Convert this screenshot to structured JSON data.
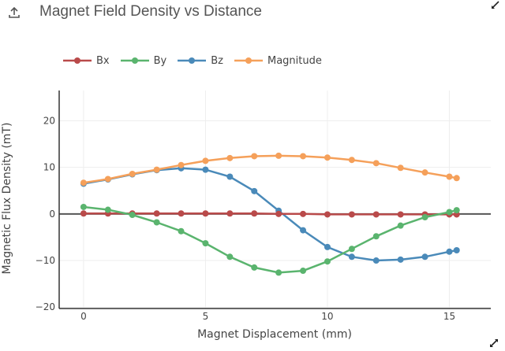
{
  "header": {
    "title": "Magnet Field Density vs Distance",
    "upload_icon": "upload-icon",
    "expand_icon": "expand-diagonal-icon"
  },
  "chart_data": {
    "type": "line",
    "title": "Magnet Field Density vs Distance",
    "xlabel": "Magnet Displacement (mm)",
    "ylabel": "Magnetic Flux Density (mT)",
    "xlim": [
      -1,
      16.7
    ],
    "ylim": [
      -20.3,
      26.5
    ],
    "xticks": [
      0,
      5,
      10,
      15
    ],
    "yticks": [
      -20,
      -10,
      0,
      10,
      20
    ],
    "xtick_labels": [
      "0",
      "5",
      "10",
      "15"
    ],
    "ytick_labels": [
      "−20",
      "−10",
      "0",
      "10",
      "20"
    ],
    "grid": true,
    "legend_position": "top-left, horizontal",
    "x": [
      0,
      1,
      2,
      3,
      4,
      5,
      6,
      7,
      8,
      9,
      10,
      11,
      12,
      13,
      14,
      15,
      15.3
    ],
    "series": [
      {
        "name": "Bx",
        "color": "#b94a4a",
        "values": [
          0.1,
          0.1,
          0.1,
          0.1,
          0.1,
          0.1,
          0.1,
          0.1,
          0.0,
          0.0,
          -0.1,
          -0.1,
          -0.1,
          -0.1,
          -0.1,
          -0.1,
          -0.1
        ]
      },
      {
        "name": "By",
        "color": "#5ab46e",
        "values": [
          1.5,
          0.9,
          -0.2,
          -1.8,
          -3.7,
          -6.3,
          -9.2,
          -11.5,
          -12.6,
          -12.2,
          -10.2,
          -7.5,
          -4.8,
          -2.5,
          -0.7,
          0.4,
          0.8
        ]
      },
      {
        "name": "Bz",
        "color": "#4a8ab9",
        "values": [
          6.5,
          7.4,
          8.5,
          9.4,
          9.8,
          9.5,
          8.0,
          4.9,
          0.7,
          -3.5,
          -7.1,
          -9.2,
          -10.0,
          -9.8,
          -9.2,
          -8.1,
          -7.8
        ]
      },
      {
        "name": "Magnitude",
        "color": "#f5a05a",
        "values": [
          6.7,
          7.5,
          8.6,
          9.5,
          10.5,
          11.4,
          12.0,
          12.4,
          12.5,
          12.4,
          12.1,
          11.6,
          10.9,
          9.9,
          8.9,
          8.0,
          7.7
        ]
      }
    ]
  }
}
